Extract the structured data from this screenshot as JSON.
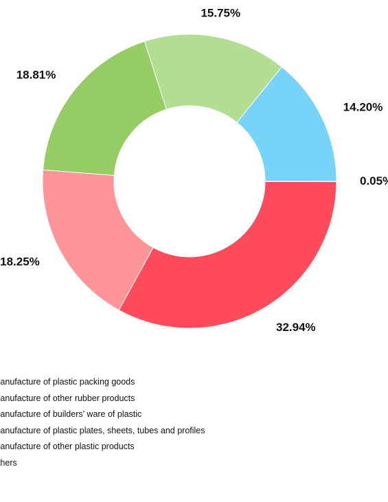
{
  "chart_data": {
    "type": "pie",
    "donut": true,
    "slices": [
      {
        "label": "manufacture of plastic packing goods",
        "value": 32.94,
        "value_label": "32.94%",
        "color": "#ff4b5c"
      },
      {
        "label": "manufacture of other rubber products",
        "value": 18.25,
        "value_label": "18.25%",
        "color": "#ff9499"
      },
      {
        "label": "manufacture of builders’ ware of plastic",
        "value": 18.81,
        "value_label": "18.81%",
        "color": "#95cc63"
      },
      {
        "label": "manufacture of plastic plates, sheets, tubes and profiles",
        "value": 15.75,
        "value_label": "15.75%",
        "color": "#b1de93"
      },
      {
        "label": "manufacture of other plastic products",
        "value": 14.2,
        "value_label": "14.20%",
        "color": "#78d3f8"
      },
      {
        "label": "others",
        "value": 0.05,
        "value_label": "0.05%",
        "color": "#2b8fd6"
      }
    ],
    "legend_position": "bottom"
  }
}
